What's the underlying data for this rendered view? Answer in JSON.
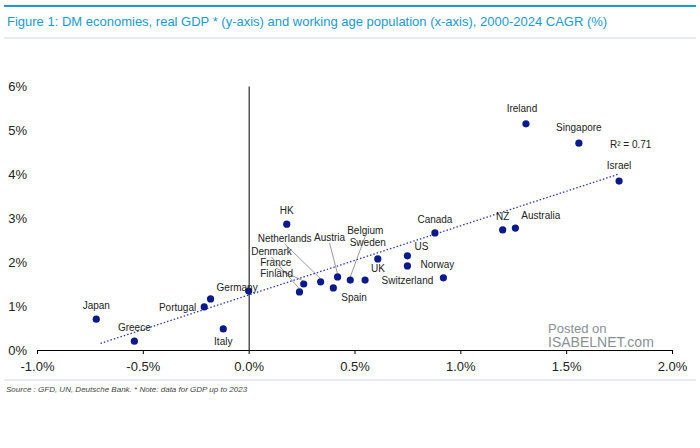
{
  "chart_data": {
    "type": "scatter",
    "title": "Figure 1: DM economies, real GDP * (y-axis) and working age population (x-axis), 2000-2024 CAGR (%)",
    "source": "Source : GFD, UN, Deutsche Bank. * Note: data for GDP up to 2023",
    "annotations": [
      "R² = 0.71",
      "Posted on",
      "ISABELNET.com"
    ],
    "point_labels": [
      "Ireland",
      "Singapore",
      "Israel",
      "Canada",
      "NZ",
      "Australia",
      "US",
      "Switzerland",
      "Norway",
      "Sweden",
      "UK",
      "Spain",
      "Belgium",
      "Austria",
      "Netherlands",
      "Denmark",
      "France",
      "Finland",
      "HK",
      "Germany",
      "Portugal",
      "Italy",
      "Japan",
      "Greece"
    ],
    "x": [
      1.31,
      1.56,
      1.75,
      0.88,
      1.2,
      1.26,
      0.75,
      0.75,
      0.92,
      0.61,
      0.55,
      0.4,
      0.48,
      0.42,
      0.34,
      0.24,
      0.26,
      0.0,
      0.18,
      -0.18,
      -0.21,
      -0.12,
      -0.72,
      -0.54
    ],
    "values": [
      5.14,
      4.7,
      3.84,
      2.66,
      2.73,
      2.77,
      2.14,
      1.91,
      1.64,
      2.07,
      1.59,
      1.41,
      1.59,
      1.66,
      1.55,
      1.32,
      1.5,
      1.34,
      2.86,
      1.16,
      0.98,
      0.48,
      0.7,
      0.2
    ],
    "color": "#0a1a8c",
    "marker": "circle",
    "trendline": {
      "x": [
        -0.7,
        1.75
      ],
      "values": [
        0.15,
        4.0
      ],
      "color": "#2a3aa8",
      "line_style": "dotted"
    },
    "xlim": [
      -1.0,
      2.0
    ],
    "xticks": [
      {
        "value": -1.0,
        "label": "-1.0%"
      },
      {
        "value": -0.5,
        "label": "-0.5%"
      },
      {
        "value": 0.0,
        "label": "0.0%"
      },
      {
        "value": 0.5,
        "label": "0.5%"
      },
      {
        "value": 1.0,
        "label": "1.0%"
      },
      {
        "value": 1.5,
        "label": "1.5%"
      },
      {
        "value": 2.0,
        "label": "2.0%"
      }
    ],
    "ylim": [
      0,
      6
    ],
    "yticks": [
      {
        "value": 0,
        "label": "0%"
      },
      {
        "value": 1,
        "label": "1%"
      },
      {
        "value": 2,
        "label": "2%"
      },
      {
        "value": 3,
        "label": "3%"
      },
      {
        "value": 4,
        "label": "4%"
      },
      {
        "value": 5,
        "label": "5%"
      },
      {
        "value": 6,
        "label": "6%"
      }
    ],
    "grid": false
  }
}
